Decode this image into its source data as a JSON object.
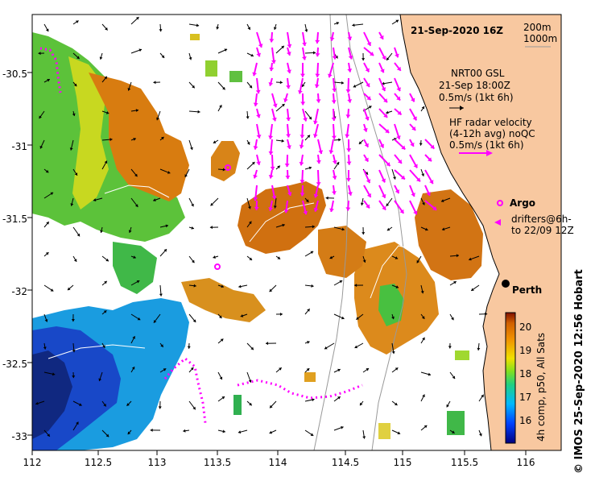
{
  "map": {
    "title": "21-Sep-2020 16Z",
    "x_ticks": [
      "112",
      "112.5",
      "113",
      "113.5",
      "114",
      "114.5",
      "115",
      "115.5",
      "116"
    ],
    "y_ticks": [
      "-30.5",
      "-31",
      "-31.5",
      "-32",
      "-32.5",
      "-33"
    ],
    "isobath_legend": [
      "200m",
      "1000m"
    ],
    "gsl_label": [
      "NRT00 GSL",
      "21-Sep 18:00Z",
      "0.5m/s (1kt 6h)"
    ],
    "radar_label": [
      "HF radar velocity",
      "(4-12h avg) noQC",
      "0.5m/s (1kt 6h)"
    ],
    "argo_label": "Argo",
    "drifter_label": [
      "drifters@6h-",
      "to 22/09 12Z"
    ],
    "city": "Perth",
    "colorbar": {
      "ticks": [
        "20",
        "19",
        "18",
        "17",
        "16"
      ],
      "label": "4h comp, p50, All Sats"
    },
    "credit": "© IMOS 25-Sep-2020 12:56 Hobart"
  },
  "colors": {
    "land": "#f8c8a0",
    "radar_vector": "#ff00ff",
    "gsl_vector": "#000000",
    "sst_warm": "#d87800",
    "sst_cool": "#1848c8"
  }
}
